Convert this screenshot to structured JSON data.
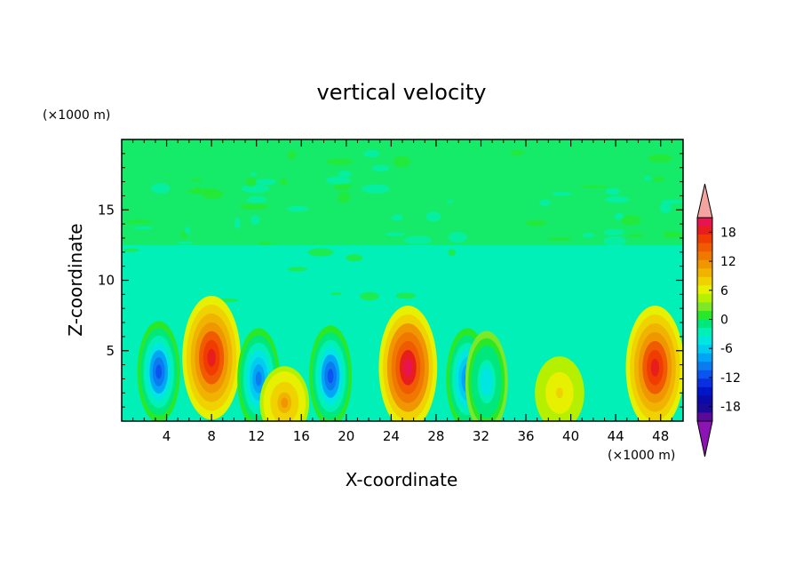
{
  "chart_data": {
    "type": "heatmap",
    "title": "vertical velocity",
    "xlabel": "X-coordinate",
    "ylabel": "Z-coordinate",
    "x_unit": "(×1000 m)",
    "y_unit": "(×1000 m)",
    "xlim": [
      0,
      50
    ],
    "ylim": [
      0,
      20
    ],
    "x_ticks": [
      4,
      8,
      12,
      16,
      20,
      24,
      28,
      32,
      36,
      40,
      44,
      48
    ],
    "y_ticks": [
      5,
      10,
      15
    ],
    "colorbar": {
      "levels": [
        -21,
        -19.5,
        -18,
        -16.5,
        -15,
        -13.5,
        -12,
        -10.5,
        -9,
        -7.5,
        -6,
        -4.5,
        -3,
        -1.5,
        0,
        1.5,
        3,
        4.5,
        6,
        7.5,
        9,
        10.5,
        12,
        13.5,
        15,
        16.5,
        18,
        19.5,
        21
      ],
      "tick_labels": [
        "18",
        "12",
        "6",
        "0",
        "-6",
        "-12",
        "-18"
      ],
      "tick_values": [
        18,
        12,
        6,
        0,
        -6,
        -12,
        -18
      ],
      "colors": [
        "#5a0a9a",
        "#1a0a96",
        "#0a0aa8",
        "#0014c8",
        "#0a2ee0",
        "#0a55f0",
        "#0a7cf0",
        "#00a6f5",
        "#00ccf0",
        "#00e6e0",
        "#00f0b8",
        "#00e87c",
        "#28e828",
        "#7ce828",
        "#b4f000",
        "#e6f000",
        "#f0d200",
        "#f0b400",
        "#f09600",
        "#f07800",
        "#f05a00",
        "#f03c00",
        "#e81e1e",
        "#e81450"
      ],
      "upper_extend_color": "#f4a4a0",
      "lower_extend_color": "#8c14b4"
    },
    "cells": [
      {
        "x": 3.3,
        "z": 3.5,
        "value": -13,
        "note": "downdraft"
      },
      {
        "x": 8.0,
        "z": 4.5,
        "value": 13,
        "note": "updraft"
      },
      {
        "x": 12.2,
        "z": 3.0,
        "value": -12,
        "note": "downdraft"
      },
      {
        "x": 14.5,
        "z": 1.3,
        "value": 6,
        "note": "updraft"
      },
      {
        "x": 18.6,
        "z": 3.2,
        "value": -13,
        "note": "downdraft"
      },
      {
        "x": 25.5,
        "z": 3.8,
        "value": 14,
        "note": "updraft"
      },
      {
        "x": 30.8,
        "z": 3.0,
        "value": -11,
        "note": "downdraft"
      },
      {
        "x": 32.5,
        "z": 2.8,
        "value": -7,
        "note": "downdraft"
      },
      {
        "x": 39.0,
        "z": 2.0,
        "value": 3,
        "note": "weak updraft"
      },
      {
        "x": 47.5,
        "z": 3.8,
        "value": 13,
        "note": "updraft"
      }
    ]
  }
}
